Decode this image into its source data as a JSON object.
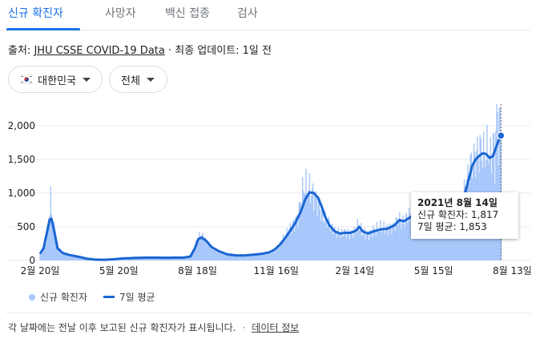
{
  "tabs": [
    {
      "label": "신규 확진자"
    },
    {
      "label": "사망자"
    },
    {
      "label": "백신 접종"
    },
    {
      "label": "검사"
    }
  ],
  "source": {
    "prefix": "출처: ",
    "link": "JHU CSSE COVID-19 Data",
    "suffix": " · 최종 업데이트: 1일 전"
  },
  "filters": {
    "country": "대한민국",
    "scope": "전체"
  },
  "tooltip": {
    "date": "2021년 8월 14일",
    "cases_label": "신규 확진자: 1,817",
    "avg_label": "7일 평균: 1,853"
  },
  "legend": {
    "cases": "신규 확진자",
    "avg": "7일 평균"
  },
  "footer": {
    "note": "각 날짜에는 전날 이후 보고된 신규 확진자가 표시됩니다.",
    "separator": "·",
    "link": "데이터 정보"
  },
  "colors": {
    "bars": "#a8c7fa",
    "line": "#1a66d2",
    "grid": "#e8eaed"
  },
  "chart_data": {
    "type": "bar",
    "title": "",
    "xlabel": "",
    "ylabel": "",
    "ylim": [
      0,
      2200
    ],
    "y_ticks": [
      0,
      500,
      1000,
      1500,
      2000
    ],
    "y_tick_labels": [
      "0",
      "500",
      "1,000",
      "1,500",
      "2,000"
    ],
    "x_tick_labels": [
      "2월 20일",
      "5월 20일",
      "8월 18일",
      "11월 16일",
      "2월 14일",
      "5월 15일",
      "8월 13일"
    ],
    "x_tick_days": [
      0,
      90,
      180,
      270,
      360,
      450,
      540
    ],
    "x_range_days": [
      0,
      546
    ],
    "series": [
      {
        "name": "신규 확진자",
        "kind": "bar",
        "points": [
          [
            0,
            100
          ],
          [
            6,
            230
          ],
          [
            10,
            600
          ],
          [
            12,
            880
          ],
          [
            14,
            630
          ],
          [
            18,
            300
          ],
          [
            24,
            130
          ],
          [
            30,
            90
          ],
          [
            40,
            70
          ],
          [
            50,
            25
          ],
          [
            60,
            15
          ],
          [
            70,
            8
          ],
          [
            80,
            15
          ],
          [
            90,
            30
          ],
          [
            100,
            35
          ],
          [
            110,
            40
          ],
          [
            120,
            45
          ],
          [
            130,
            45
          ],
          [
            140,
            40
          ],
          [
            150,
            45
          ],
          [
            160,
            40
          ],
          [
            170,
            45
          ],
          [
            175,
            120
          ],
          [
            180,
            330
          ],
          [
            184,
            380
          ],
          [
            188,
            320
          ],
          [
            194,
            220
          ],
          [
            200,
            150
          ],
          [
            210,
            100
          ],
          [
            220,
            85
          ],
          [
            230,
            70
          ],
          [
            240,
            80
          ],
          [
            250,
            100
          ],
          [
            260,
            105
          ],
          [
            265,
            130
          ],
          [
            270,
            180
          ],
          [
            275,
            250
          ],
          [
            280,
            360
          ],
          [
            285,
            450
          ],
          [
            290,
            550
          ],
          [
            295,
            650
          ],
          [
            298,
            900
          ],
          [
            302,
            1100
          ],
          [
            308,
            1050
          ],
          [
            314,
            950
          ],
          [
            318,
            850
          ],
          [
            322,
            700
          ],
          [
            326,
            600
          ],
          [
            332,
            500
          ],
          [
            338,
            420
          ],
          [
            344,
            400
          ],
          [
            350,
            420
          ],
          [
            356,
            400
          ],
          [
            360,
            430
          ],
          [
            364,
            520
          ],
          [
            368,
            420
          ],
          [
            374,
            380
          ],
          [
            380,
            440
          ],
          [
            388,
            480
          ],
          [
            396,
            470
          ],
          [
            404,
            500
          ],
          [
            410,
            620
          ],
          [
            414,
            550
          ],
          [
            420,
            640
          ],
          [
            428,
            730
          ],
          [
            436,
            680
          ],
          [
            444,
            620
          ],
          [
            450,
            600
          ],
          [
            456,
            570
          ],
          [
            460,
            560
          ],
          [
            464,
            540
          ],
          [
            468,
            600
          ],
          [
            472,
            650
          ],
          [
            476,
            720
          ],
          [
            480,
            780
          ],
          [
            484,
            1000
          ],
          [
            488,
            1150
          ],
          [
            490,
            1300
          ],
          [
            492,
            1400
          ],
          [
            496,
            1500
          ],
          [
            500,
            1600
          ],
          [
            504,
            1650
          ],
          [
            508,
            1550
          ],
          [
            512,
            1650
          ],
          [
            515,
            1500
          ],
          [
            518,
            1760
          ],
          [
            520,
            1500
          ],
          [
            522,
            2200
          ],
          [
            524,
            1900
          ],
          [
            526,
            2100
          ],
          [
            527,
            1817
          ]
        ]
      },
      {
        "name": "7일 평균",
        "kind": "line",
        "points": [
          [
            0,
            100
          ],
          [
            4,
            180
          ],
          [
            8,
            420
          ],
          [
            11,
            610
          ],
          [
            13,
            620
          ],
          [
            16,
            450
          ],
          [
            20,
            180
          ],
          [
            26,
            110
          ],
          [
            34,
            80
          ],
          [
            44,
            55
          ],
          [
            54,
            25
          ],
          [
            64,
            12
          ],
          [
            74,
            10
          ],
          [
            84,
            18
          ],
          [
            94,
            30
          ],
          [
            104,
            35
          ],
          [
            114,
            40
          ],
          [
            124,
            42
          ],
          [
            134,
            42
          ],
          [
            144,
            40
          ],
          [
            154,
            42
          ],
          [
            164,
            42
          ],
          [
            172,
            60
          ],
          [
            177,
            180
          ],
          [
            181,
            320
          ],
          [
            185,
            340
          ],
          [
            190,
            290
          ],
          [
            196,
            200
          ],
          [
            204,
            140
          ],
          [
            214,
            90
          ],
          [
            224,
            75
          ],
          [
            234,
            75
          ],
          [
            244,
            85
          ],
          [
            254,
            100
          ],
          [
            262,
            120
          ],
          [
            268,
            160
          ],
          [
            274,
            230
          ],
          [
            280,
            330
          ],
          [
            286,
            440
          ],
          [
            292,
            560
          ],
          [
            298,
            720
          ],
          [
            303,
            900
          ],
          [
            308,
            1010
          ],
          [
            313,
            1000
          ],
          [
            318,
            930
          ],
          [
            322,
            800
          ],
          [
            326,
            650
          ],
          [
            331,
            520
          ],
          [
            337,
            430
          ],
          [
            343,
            400
          ],
          [
            349,
            410
          ],
          [
            355,
            410
          ],
          [
            361,
            440
          ],
          [
            365,
            500
          ],
          [
            369,
            430
          ],
          [
            375,
            400
          ],
          [
            381,
            430
          ],
          [
            389,
            460
          ],
          [
            397,
            470
          ],
          [
            405,
            520
          ],
          [
            411,
            600
          ],
          [
            416,
            580
          ],
          [
            422,
            630
          ],
          [
            430,
            690
          ],
          [
            438,
            650
          ],
          [
            446,
            610
          ],
          [
            452,
            590
          ],
          [
            458,
            570
          ],
          [
            464,
            560
          ],
          [
            470,
            620
          ],
          [
            476,
            700
          ],
          [
            482,
            850
          ],
          [
            486,
            1000
          ],
          [
            490,
            1200
          ],
          [
            494,
            1400
          ],
          [
            498,
            1500
          ],
          [
            502,
            1550
          ],
          [
            506,
            1590
          ],
          [
            510,
            1580
          ],
          [
            514,
            1520
          ],
          [
            518,
            1550
          ],
          [
            522,
            1700
          ],
          [
            525,
            1800
          ],
          [
            527,
            1853
          ]
        ]
      }
    ],
    "annotation": "2021년 8월 14일",
    "grid": true,
    "legend_position": "bottom-left"
  }
}
